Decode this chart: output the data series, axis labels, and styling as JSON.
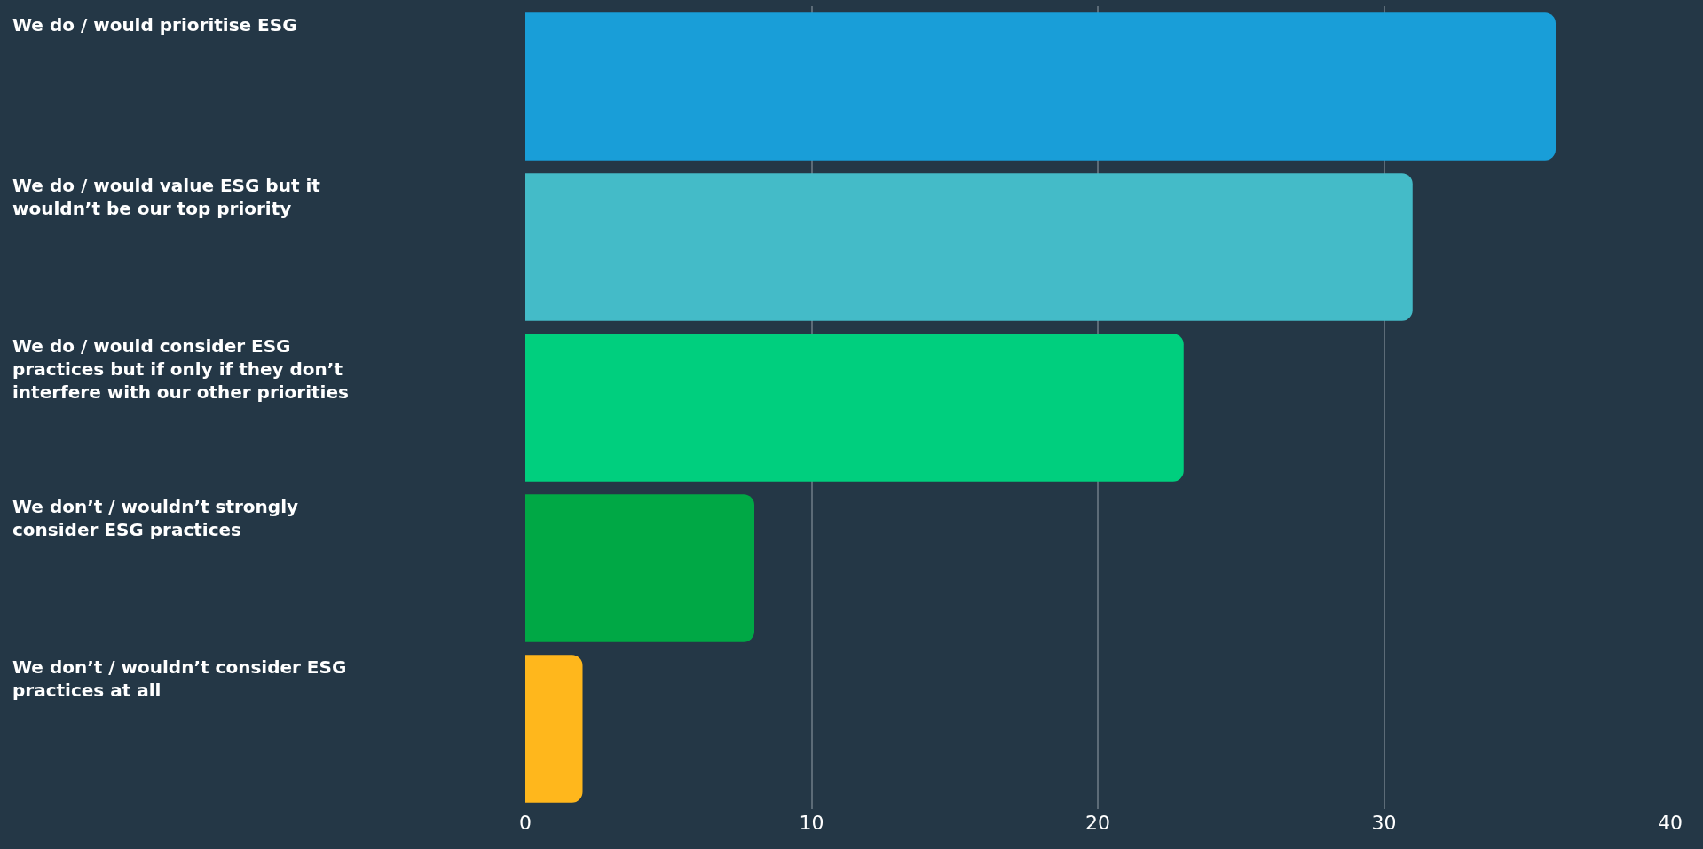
{
  "chart_data": {
    "type": "bar",
    "orientation": "horizontal",
    "categories": [
      "We do / would prioritise ESG",
      "We do / would value ESG but it wouldn’t be our top priority",
      "We do / would consider ESG practices but if only if they don’t interfere with our other priorities",
      "We don’t / wouldn’t strongly consider ESG practices",
      "We don’t / wouldn’t consider ESG practices at all"
    ],
    "values": [
      36,
      31,
      23,
      8,
      2
    ],
    "colors": [
      "#199ed8",
      "#44bbc8",
      "#00cf7e",
      "#00a845",
      "#ffb71c"
    ],
    "xlim": [
      0,
      40
    ],
    "xticks": [
      0,
      10,
      20,
      30,
      40
    ],
    "grid": "x",
    "legend": false
  }
}
